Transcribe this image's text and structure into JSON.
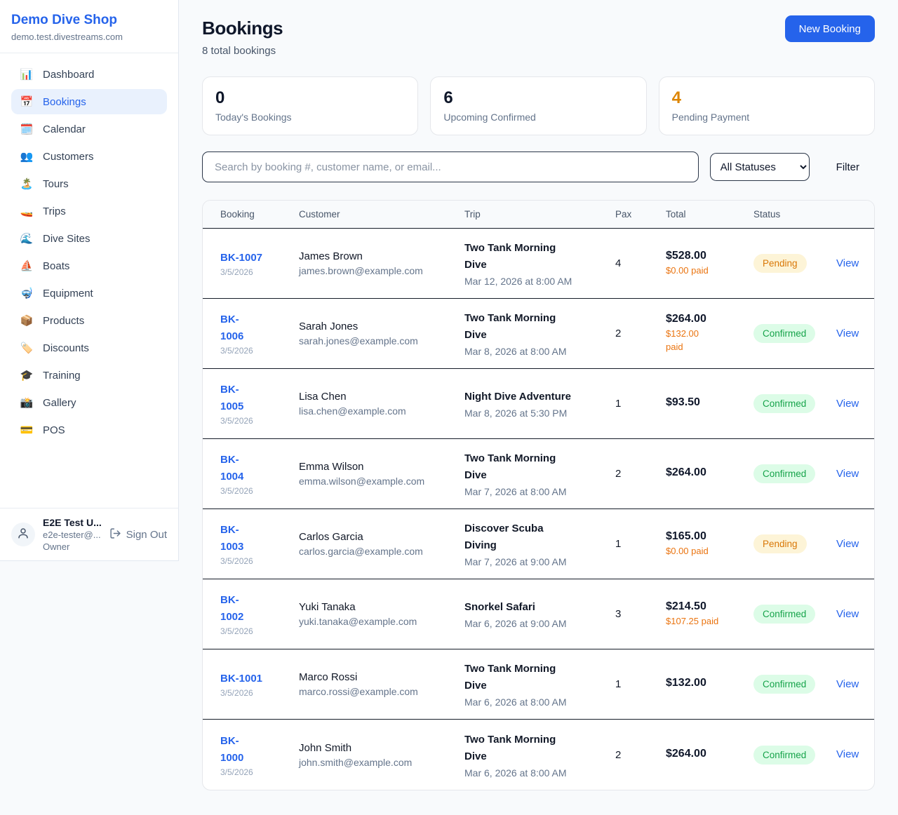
{
  "brand": {
    "name": "Demo Dive Shop",
    "domain": "demo.test.divestreams.com"
  },
  "sidebar": {
    "items": [
      {
        "id": "dashboard",
        "icon": "📊",
        "label": "Dashboard",
        "active": false
      },
      {
        "id": "bookings",
        "icon": "📅",
        "label": "Bookings",
        "active": true
      },
      {
        "id": "calendar",
        "icon": "🗓️",
        "label": "Calendar",
        "active": false
      },
      {
        "id": "customers",
        "icon": "👥",
        "label": "Customers",
        "active": false
      },
      {
        "id": "tours",
        "icon": "🏝️",
        "label": "Tours",
        "active": false
      },
      {
        "id": "trips",
        "icon": "🚤",
        "label": "Trips",
        "active": false
      },
      {
        "id": "dive-sites",
        "icon": "🌊",
        "label": "Dive Sites",
        "active": false
      },
      {
        "id": "boats",
        "icon": "⛵",
        "label": "Boats",
        "active": false
      },
      {
        "id": "equipment",
        "icon": "🤿",
        "label": "Equipment",
        "active": false
      },
      {
        "id": "products",
        "icon": "📦",
        "label": "Products",
        "active": false
      },
      {
        "id": "discounts",
        "icon": "🏷️",
        "label": "Discounts",
        "active": false
      },
      {
        "id": "training",
        "icon": "🎓",
        "label": "Training",
        "active": false
      },
      {
        "id": "gallery",
        "icon": "📸",
        "label": "Gallery",
        "active": false
      },
      {
        "id": "pos",
        "icon": "💳",
        "label": "POS",
        "active": false
      }
    ]
  },
  "user": {
    "name": "E2E Test U...",
    "email": "e2e-tester@...",
    "role": "Owner",
    "sign_out_label": "Sign Out"
  },
  "header": {
    "title": "Bookings",
    "subtitle": "8 total bookings",
    "new_booking_label": "New Booking"
  },
  "stats": {
    "cards": [
      {
        "value": "0",
        "label": "Today's Bookings",
        "value_color": "#0f172a"
      },
      {
        "value": "6",
        "label": "Upcoming Confirmed",
        "value_color": "#0f172a"
      },
      {
        "value": "4",
        "label": "Pending Payment",
        "value_color": "#dd8500"
      }
    ]
  },
  "toolbar": {
    "search_placeholder": "Search by booking #, customer name, or email...",
    "status_filter": "All Statuses",
    "filter_label": "Filter"
  },
  "table": {
    "headers": [
      "Booking",
      "Customer",
      "Trip",
      "Pax",
      "Total",
      "Status"
    ],
    "view_label": "View",
    "status_styles": {
      "Pending": {
        "bg": "#fdf4d7",
        "color": "#d97706"
      },
      "Confirmed": {
        "bg": "#dcfce7",
        "color": "#16a34a"
      }
    },
    "rows": [
      {
        "booking_lines": [
          "BK-1007"
        ],
        "date": "3/5/2026",
        "customer": "James Brown",
        "email": "james.brown@example.com",
        "trip_lines": [
          "Two Tank Morning",
          "Dive"
        ],
        "trip_datetime": "Mar 12, 2026 at 8:00 AM",
        "pax": "4",
        "total": "$528.00",
        "paid_lines": [
          "$0.00 paid"
        ],
        "status": "Pending"
      },
      {
        "booking_lines": [
          "BK-",
          "1006"
        ],
        "date": "3/5/2026",
        "customer": "Sarah Jones",
        "email": "sarah.jones@example.com",
        "trip_lines": [
          "Two Tank Morning",
          "Dive"
        ],
        "trip_datetime": "Mar 8, 2026 at 8:00 AM",
        "pax": "2",
        "total": "$264.00",
        "paid_lines": [
          "$132.00",
          "paid"
        ],
        "status": "Confirmed"
      },
      {
        "booking_lines": [
          "BK-",
          "1005"
        ],
        "date": "3/5/2026",
        "customer": "Lisa Chen",
        "email": "lisa.chen@example.com",
        "trip_lines": [
          "Night Dive Adventure"
        ],
        "trip_datetime": "Mar 8, 2026 at 5:30 PM",
        "pax": "1",
        "total": "$93.50",
        "paid_lines": [],
        "status": "Confirmed"
      },
      {
        "booking_lines": [
          "BK-",
          "1004"
        ],
        "date": "3/5/2026",
        "customer": "Emma Wilson",
        "email": "emma.wilson@example.com",
        "trip_lines": [
          "Two Tank Morning",
          "Dive"
        ],
        "trip_datetime": "Mar 7, 2026 at 8:00 AM",
        "pax": "2",
        "total": "$264.00",
        "paid_lines": [],
        "status": "Confirmed"
      },
      {
        "booking_lines": [
          "BK-",
          "1003"
        ],
        "date": "3/5/2026",
        "customer": "Carlos Garcia",
        "email": "carlos.garcia@example.com",
        "trip_lines": [
          "Discover Scuba",
          "Diving"
        ],
        "trip_datetime": "Mar 7, 2026 at 9:00 AM",
        "pax": "1",
        "total": "$165.00",
        "paid_lines": [
          "$0.00 paid"
        ],
        "status": "Pending"
      },
      {
        "booking_lines": [
          "BK-",
          "1002"
        ],
        "date": "3/5/2026",
        "customer": "Yuki Tanaka",
        "email": "yuki.tanaka@example.com",
        "trip_lines": [
          "Snorkel Safari"
        ],
        "trip_datetime": "Mar 6, 2026 at 9:00 AM",
        "pax": "3",
        "total": "$214.50",
        "paid_lines": [
          "$107.25 paid"
        ],
        "status": "Confirmed"
      },
      {
        "booking_lines": [
          "BK-1001"
        ],
        "date": "3/5/2026",
        "customer": "Marco Rossi",
        "email": "marco.rossi@example.com",
        "trip_lines": [
          "Two Tank Morning",
          "Dive"
        ],
        "trip_datetime": "Mar 6, 2026 at 8:00 AM",
        "pax": "1",
        "total": "$132.00",
        "paid_lines": [],
        "status": "Confirmed"
      },
      {
        "booking_lines": [
          "BK-",
          "1000"
        ],
        "date": "3/5/2026",
        "customer": "John Smith",
        "email": "john.smith@example.com",
        "trip_lines": [
          "Two Tank Morning",
          "Dive"
        ],
        "trip_datetime": "Mar 6, 2026 at 8:00 AM",
        "pax": "2",
        "total": "$264.00",
        "paid_lines": [],
        "status": "Confirmed"
      }
    ]
  },
  "colors": {
    "accent": "#2563eb",
    "paid_text": "#ea7410"
  }
}
